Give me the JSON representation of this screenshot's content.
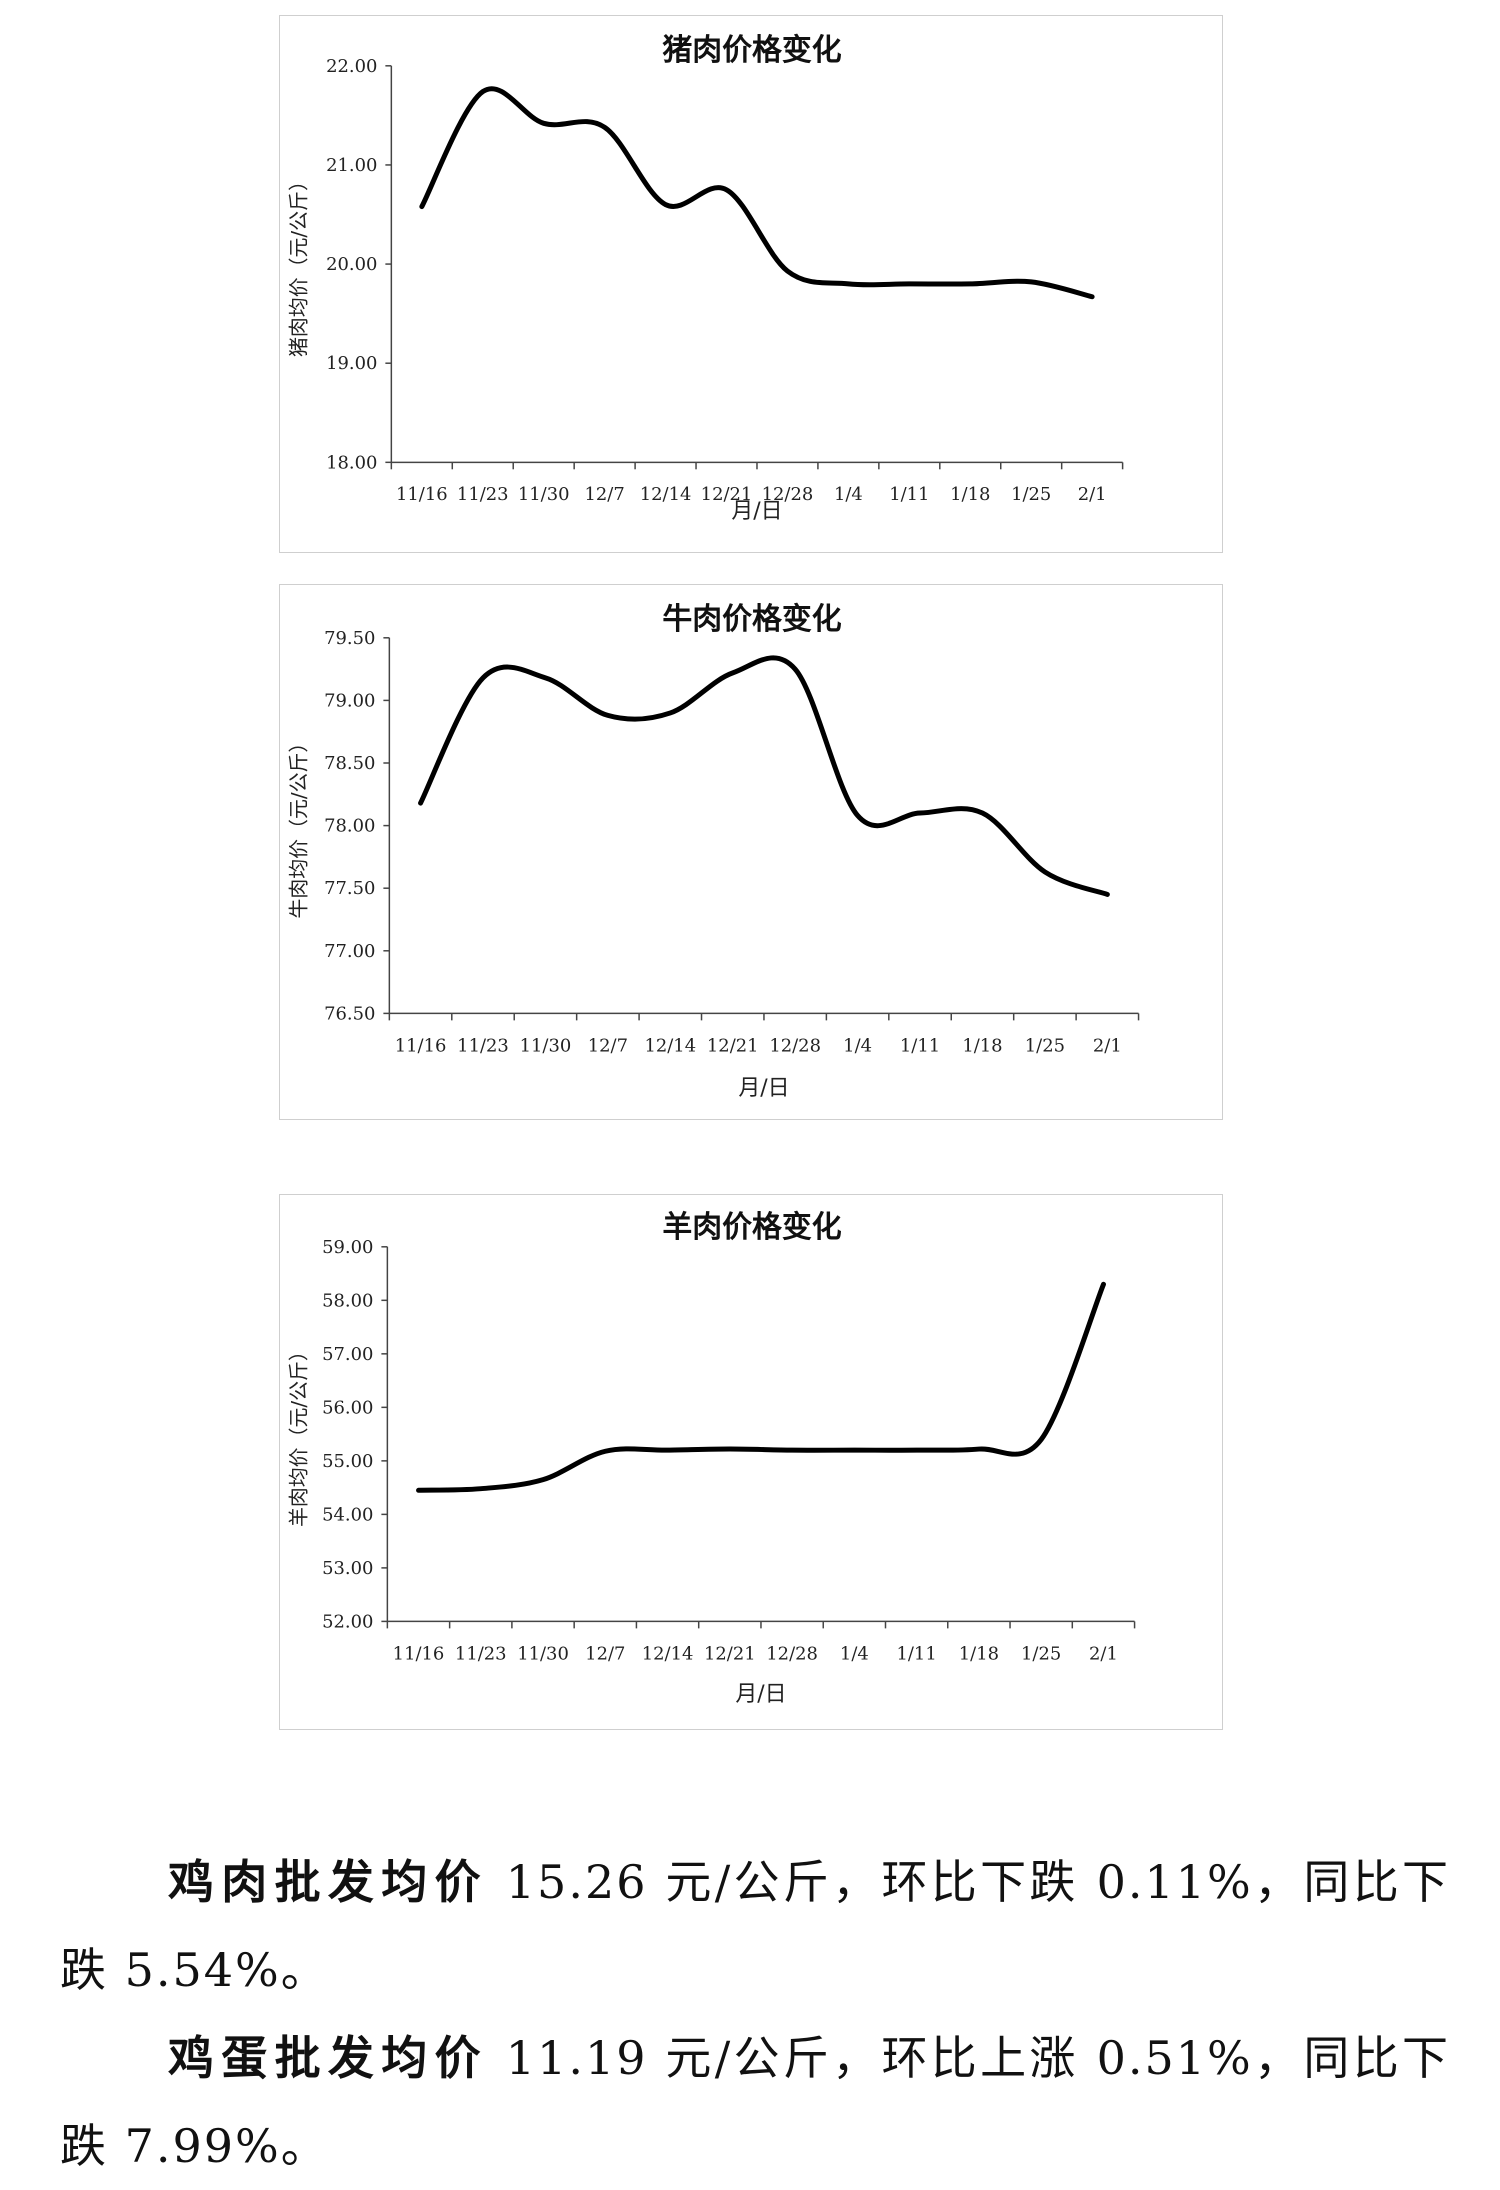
{
  "chart_data": [
    {
      "type": "line",
      "title": "猪肉价格变化",
      "xlabel": "月/日",
      "ylabel": "猪肉均价（元/公斤）",
      "categories": [
        "11/16",
        "11/23",
        "11/30",
        "12/7",
        "12/14",
        "12/21",
        "12/28",
        "1/4",
        "1/11",
        "1/18",
        "1/25",
        "2/1"
      ],
      "yticks": [
        "22.00",
        "21.00",
        "20.00",
        "19.00",
        "18.00"
      ],
      "ylim": [
        18,
        22
      ],
      "grid": false,
      "series": [
        {
          "values": [
            20.58,
            21.74,
            21.42,
            21.38,
            20.6,
            20.75,
            19.93,
            19.8,
            19.8,
            19.8,
            19.82,
            19.67
          ]
        }
      ]
    },
    {
      "type": "line",
      "title": "牛肉价格变化",
      "xlabel": "月/日",
      "ylabel": "牛肉均价（元/公斤）",
      "categories": [
        "11/16",
        "11/23",
        "11/30",
        "12/7",
        "12/14",
        "12/21",
        "12/28",
        "1/4",
        "1/11",
        "1/18",
        "1/25",
        "2/1"
      ],
      "yticks": [
        "79.50",
        "79.00",
        "78.50",
        "78.00",
        "77.50",
        "77.00",
        "76.50"
      ],
      "ylim": [
        76.5,
        79.5
      ],
      "grid": false,
      "series": [
        {
          "values": [
            78.18,
            79.18,
            79.18,
            78.88,
            78.9,
            79.22,
            79.25,
            78.08,
            78.1,
            78.1,
            77.63,
            77.45
          ]
        }
      ]
    },
    {
      "type": "line",
      "title": "羊肉价格变化",
      "xlabel": "月/日",
      "ylabel": "羊肉均价（元/公斤）",
      "categories": [
        "11/16",
        "11/23",
        "11/30",
        "12/7",
        "12/14",
        "12/21",
        "12/28",
        "1/4",
        "1/11",
        "1/18",
        "1/25",
        "2/1"
      ],
      "yticks": [
        "59.00",
        "58.00",
        "57.00",
        "56.00",
        "55.00",
        "54.00",
        "53.00",
        "52.00"
      ],
      "ylim": [
        52,
        59
      ],
      "grid": false,
      "series": [
        {
          "values": [
            54.45,
            54.48,
            54.65,
            55.18,
            55.2,
            55.22,
            55.2,
            55.2,
            55.2,
            55.22,
            55.4,
            58.3
          ]
        }
      ]
    }
  ],
  "paragraphs": [
    {
      "bold": "鸡肉批发均价",
      "rest": " 15.26 元/公斤，环比下跌 0.11%，同比下跌 5.54%。"
    },
    {
      "bold": "鸡蛋批发均价",
      "rest": " 11.19 元/公斤，环比上涨 0.51%，同比下跌 7.99%。"
    }
  ]
}
